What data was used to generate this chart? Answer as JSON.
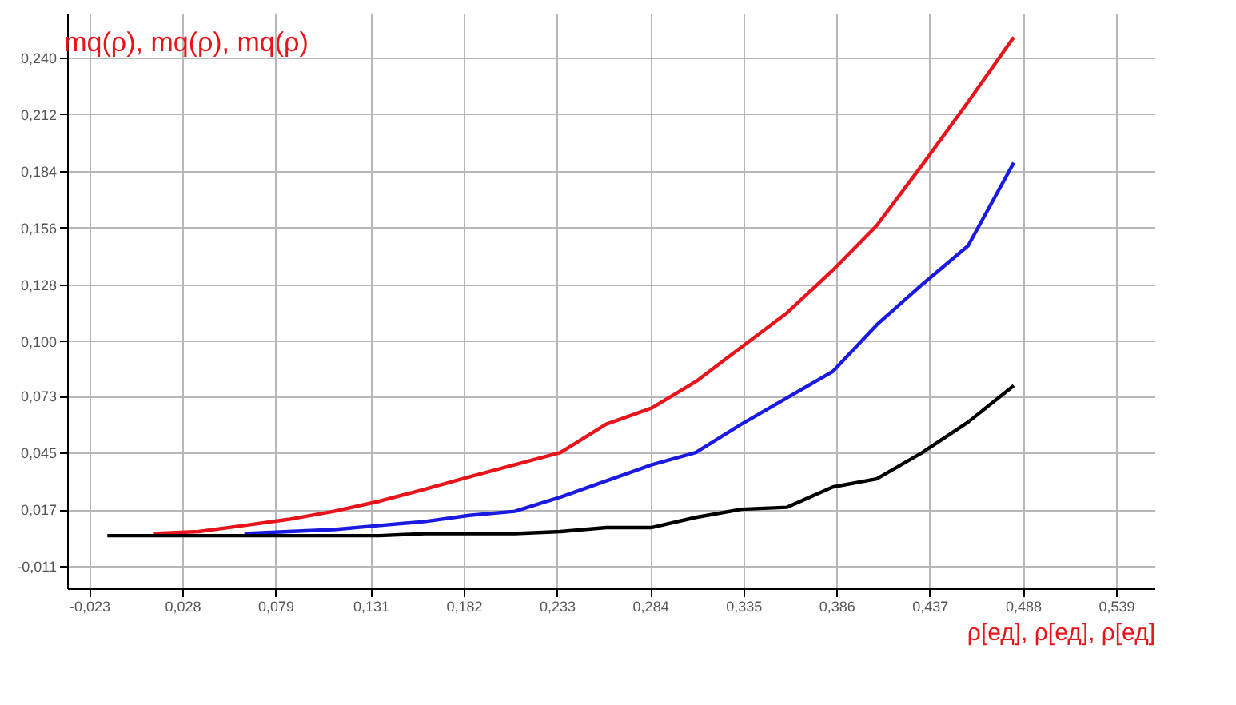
{
  "chart_data": {
    "type": "line",
    "title": "mq(ρ), mq(ρ), mq(ρ)",
    "xlabel": "ρ[ед], ρ[ед], ρ[ед]",
    "x": [
      -0.013,
      0.012,
      0.037,
      0.062,
      0.086,
      0.111,
      0.136,
      0.161,
      0.185,
      0.21,
      0.235,
      0.26,
      0.285,
      0.309,
      0.334,
      0.359,
      0.384,
      0.408,
      0.433,
      0.458,
      0.483
    ],
    "series": [
      {
        "color": "#e8141c",
        "values": [
          null,
          0.005,
          0.006,
          0.009,
          0.012,
          0.016,
          0.021,
          0.027,
          0.033,
          0.039,
          0.045,
          0.059,
          0.067,
          0.08,
          0.097,
          0.114,
          0.135,
          0.157,
          0.187,
          0.218,
          0.25
        ]
      },
      {
        "color": "#1a1ae0",
        "values": [
          null,
          null,
          null,
          0.005,
          0.006,
          0.007,
          0.009,
          0.011,
          0.014,
          0.016,
          0.023,
          0.031,
          0.039,
          0.045,
          0.059,
          0.072,
          0.085,
          0.108,
          0.128,
          0.147,
          0.188
        ]
      },
      {
        "color": "#000000",
        "values": [
          0.004,
          0.004,
          0.004,
          0.004,
          0.004,
          0.004,
          0.004,
          0.005,
          0.005,
          0.005,
          0.006,
          0.008,
          0.008,
          0.013,
          0.017,
          0.018,
          0.028,
          0.032,
          0.045,
          0.06,
          0.078
        ]
      }
    ],
    "xlim": [
      -0.035,
      0.56
    ],
    "ylim": [
      -0.022,
      0.262
    ],
    "xticks": [
      {
        "value": -0.023,
        "label": "-0,023"
      },
      {
        "value": 0.028,
        "label": "0,028"
      },
      {
        "value": 0.079,
        "label": "0,079"
      },
      {
        "value": 0.131,
        "label": "0,131"
      },
      {
        "value": 0.182,
        "label": "0,182"
      },
      {
        "value": 0.233,
        "label": "0,233"
      },
      {
        "value": 0.284,
        "label": "0,284"
      },
      {
        "value": 0.335,
        "label": "0,335"
      },
      {
        "value": 0.386,
        "label": "0,386"
      },
      {
        "value": 0.437,
        "label": "0,437"
      },
      {
        "value": 0.488,
        "label": "0,488"
      },
      {
        "value": 0.539,
        "label": "0,539"
      }
    ],
    "yticks": [
      {
        "value": -0.011,
        "label": "-0,011"
      },
      {
        "value": 0.017,
        "label": "0,017"
      },
      {
        "value": 0.045,
        "label": "0,045"
      },
      {
        "value": 0.073,
        "label": "0,073"
      },
      {
        "value": 0.1,
        "label": "0,100"
      },
      {
        "value": 0.128,
        "label": "0,128"
      },
      {
        "value": 0.156,
        "label": "0,156"
      },
      {
        "value": 0.184,
        "label": "0,184"
      },
      {
        "value": 0.212,
        "label": "0,212"
      },
      {
        "value": 0.24,
        "label": "0,240"
      }
    ],
    "grid": true,
    "legend": false,
    "line_style": "solid"
  }
}
